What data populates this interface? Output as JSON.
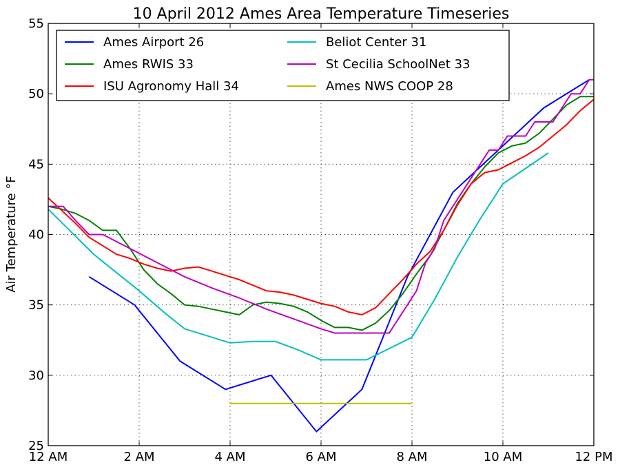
{
  "chart_data": {
    "type": "line",
    "title": "10 April 2012 Ames Area Temperature Timeseries",
    "ylabel": "Air Temperature °F",
    "xlabel": "",
    "xlim": [
      0,
      12
    ],
    "ylim": [
      25,
      55
    ],
    "xticks": [
      {
        "value": 0,
        "label": "12 AM"
      },
      {
        "value": 2,
        "label": "2 AM"
      },
      {
        "value": 4,
        "label": "4 AM"
      },
      {
        "value": 6,
        "label": "6 AM"
      },
      {
        "value": 8,
        "label": "8 AM"
      },
      {
        "value": 10,
        "label": "10 AM"
      },
      {
        "value": 12,
        "label": "12 PM"
      }
    ],
    "yticks": [
      25,
      30,
      35,
      40,
      45,
      50,
      55
    ],
    "grid": true,
    "legend": "top",
    "series": [
      {
        "name": "Ames Airport 26",
        "color": "#0000ff",
        "x": [
          0.9,
          1.9,
          2.9,
          3.9,
          4.9,
          5.9,
          6.9,
          7.9,
          8.9,
          9.9,
          10.9,
          11.9
        ],
        "y": [
          37,
          35,
          31,
          29,
          30,
          26,
          29,
          37,
          43,
          46,
          49,
          51
        ]
      },
      {
        "name": "Ames RWIS 33",
        "color": "#008000",
        "x": [
          0,
          0.3,
          0.6,
          0.9,
          1.2,
          1.5,
          1.8,
          2.1,
          2.4,
          2.7,
          3.0,
          3.3,
          3.6,
          3.9,
          4.2,
          4.5,
          4.8,
          5.1,
          5.4,
          5.7,
          6.0,
          6.3,
          6.6,
          6.9,
          7.2,
          7.5,
          7.8,
          8.1,
          8.4,
          8.7,
          9.0,
          9.3,
          9.6,
          9.9,
          10.2,
          10.5,
          10.8,
          11.1,
          11.4,
          11.7,
          12.0
        ],
        "y": [
          42,
          41.8,
          41.5,
          41,
          40.3,
          40.3,
          39,
          37.5,
          36.5,
          35.8,
          35,
          34.9,
          34.7,
          34.5,
          34.3,
          35,
          35.2,
          35.1,
          34.9,
          34.5,
          33.9,
          33.4,
          33.4,
          33.2,
          33.7,
          34.6,
          35.8,
          37.2,
          38.5,
          40.3,
          42.2,
          43.6,
          44.8,
          45.8,
          46.3,
          46.5,
          47.2,
          48.2,
          49.2,
          49.8,
          49.8
        ]
      },
      {
        "name": "ISU Agronomy Hall 34",
        "color": "#ff0000",
        "x": [
          0,
          0.3,
          0.6,
          0.9,
          1.2,
          1.5,
          1.8,
          2.1,
          2.4,
          2.7,
          3.0,
          3.3,
          3.6,
          3.9,
          4.2,
          4.5,
          4.8,
          5.1,
          5.4,
          5.7,
          6.0,
          6.3,
          6.6,
          6.9,
          7.2,
          7.5,
          7.8,
          8.1,
          8.4,
          8.7,
          9.0,
          9.3,
          9.6,
          9.9,
          10.2,
          10.5,
          10.8,
          11.1,
          11.4,
          11.7,
          12.0
        ],
        "y": [
          42.6,
          41.7,
          40.8,
          39.8,
          39.2,
          38.6,
          38.3,
          37.9,
          37.6,
          37.4,
          37.6,
          37.7,
          37.4,
          37.1,
          36.8,
          36.4,
          36.0,
          35.9,
          35.7,
          35.4,
          35.1,
          34.9,
          34.5,
          34.3,
          34.8,
          35.8,
          36.8,
          37.9,
          38.8,
          40.3,
          42.1,
          43.6,
          44.4,
          44.6,
          45.1,
          45.6,
          46.2,
          47.0,
          47.8,
          48.8,
          49.6
        ]
      },
      {
        "name": "Beliot Center 31",
        "color": "#00bfbf",
        "x": [
          0,
          0.5,
          1.0,
          1.5,
          2.0,
          2.5,
          3.0,
          3.5,
          4.0,
          4.5,
          5.0,
          5.5,
          6.0,
          6.5,
          7.0,
          7.5,
          8.0,
          8.5,
          9.0,
          9.5,
          10.0,
          10.5,
          11.0
        ],
        "y": [
          41.8,
          40.2,
          38.6,
          37.3,
          36.0,
          34.6,
          33.3,
          32.8,
          32.3,
          32.4,
          32.4,
          31.8,
          31.1,
          31.1,
          31.1,
          31.9,
          32.7,
          35.4,
          38.4,
          41.1,
          43.6,
          44.7,
          45.8
        ]
      },
      {
        "name": "St Cecilia SchoolNet 33",
        "color": "#bf00bf",
        "x": [
          0,
          0.33,
          0.6,
          0.9,
          1.2,
          1.8,
          2.4,
          3.0,
          3.6,
          4.2,
          4.8,
          5.4,
          6.0,
          6.3,
          6.9,
          7.5,
          7.7,
          7.9,
          8.1,
          8.3,
          8.5,
          8.7,
          8.9,
          9.1,
          9.3,
          9.5,
          9.7,
          9.9,
          10.1,
          10.3,
          10.5,
          10.7,
          10.9,
          11.1,
          11.3,
          11.5,
          11.7,
          11.9,
          12.0
        ],
        "y": [
          42,
          42,
          41,
          40,
          40,
          39,
          38,
          37,
          36.2,
          35.5,
          34.7,
          34,
          33.3,
          33,
          33,
          33,
          34,
          35,
          36,
          38,
          39,
          41,
          42,
          43,
          44,
          45,
          46,
          46,
          47,
          47,
          47,
          48,
          48,
          48,
          49,
          50,
          50,
          51,
          51
        ]
      },
      {
        "name": "Ames NWS COOP 28",
        "color": "#bfbf00",
        "x": [
          4,
          8
        ],
        "y": [
          28,
          28
        ]
      }
    ]
  }
}
